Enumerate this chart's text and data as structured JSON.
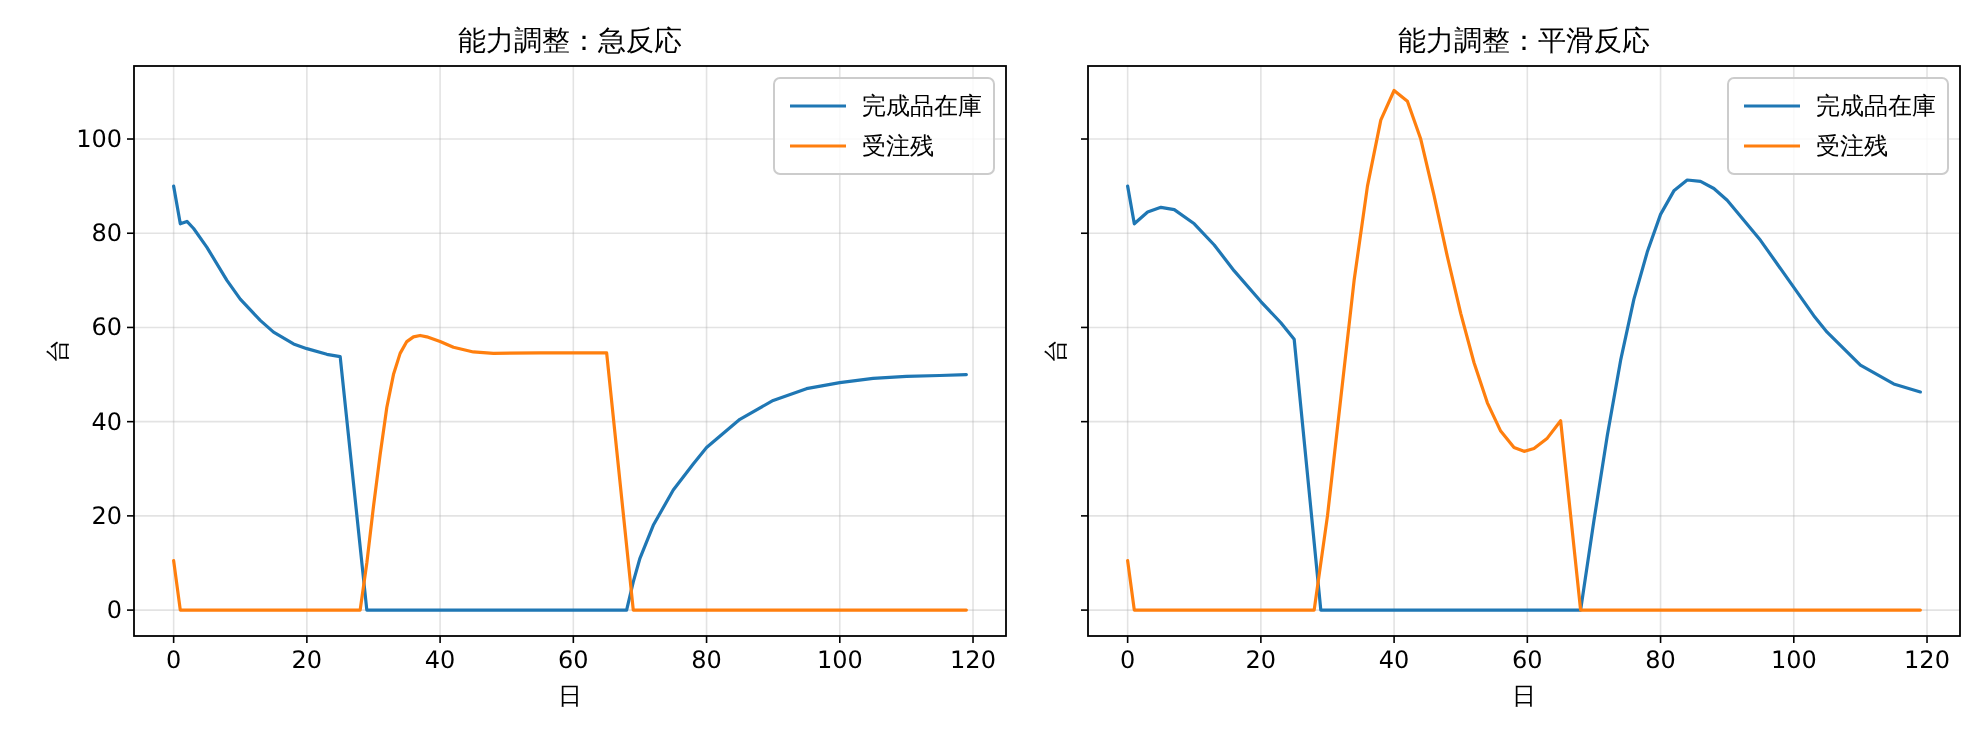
{
  "chart_data": [
    {
      "type": "line",
      "title": "能力調整：急反応",
      "xlabel": "日",
      "ylabel": "台",
      "xlim": [
        -5.95,
        124.95
      ],
      "ylim": [
        -5.5,
        115.5
      ],
      "xticks": [
        0,
        20,
        40,
        60,
        80,
        100,
        120
      ],
      "yticks": [
        0,
        20,
        40,
        60,
        80,
        100
      ],
      "grid": true,
      "legend": "top right",
      "series": [
        {
          "name": "完成品在庫",
          "color": "#1f77b4",
          "x": [
            0,
            1,
            2,
            3,
            5,
            8,
            10,
            13,
            15,
            18,
            20,
            23,
            25,
            29,
            68,
            69,
            70,
            72,
            75,
            78,
            80,
            85,
            90,
            95,
            100,
            105,
            110,
            115,
            119
          ],
          "values": [
            90,
            82,
            82.5,
            81,
            77,
            70,
            66,
            61.5,
            59,
            56.5,
            55.5,
            54.3,
            53.8,
            0,
            0,
            6,
            11,
            18,
            25.5,
            31,
            34.5,
            40.5,
            44.5,
            47,
            48.3,
            49.2,
            49.6,
            49.8,
            50
          ]
        },
        {
          "name": "受注残",
          "color": "#ff7f0e",
          "x": [
            0,
            1,
            28,
            29,
            30,
            31,
            32,
            33,
            34,
            35,
            36,
            37,
            38,
            40,
            42,
            45,
            48,
            55,
            65,
            69,
            119
          ],
          "values": [
            10.5,
            0,
            0,
            10,
            22,
            33,
            43,
            50,
            54.5,
            57,
            58,
            58.3,
            58,
            57,
            55.8,
            54.8,
            54.5,
            54.6,
            54.6,
            0,
            0
          ]
        }
      ]
    },
    {
      "type": "line",
      "title": "能力調整：平滑反応",
      "xlabel": "日",
      "ylabel": "台",
      "xlim": [
        -5.95,
        124.95
      ],
      "ylim": [
        -5.5,
        115.5
      ],
      "xticks": [
        0,
        20,
        40,
        60,
        80,
        100,
        120
      ],
      "yticks": [
        0,
        20,
        40,
        60,
        80,
        100
      ],
      "grid": true,
      "legend": "top right",
      "tick_labels": "x",
      "series": [
        {
          "name": "完成品在庫",
          "color": "#1f77b4",
          "x": [
            0,
            1,
            3,
            5,
            7,
            10,
            13,
            16,
            20,
            23,
            25,
            29,
            68,
            70,
            72,
            74,
            76,
            78,
            80,
            82,
            84,
            86,
            88,
            90,
            95,
            100,
            103,
            105,
            110,
            115,
            119
          ],
          "values": [
            90,
            82,
            84.5,
            85.5,
            85,
            82,
            77.5,
            72,
            65.5,
            61,
            57.5,
            0,
            0,
            19,
            37,
            53,
            66,
            76,
            84,
            89,
            91.3,
            91,
            89.5,
            87,
            78.5,
            68.5,
            62.5,
            59,
            52,
            48,
            46.3
          ]
        },
        {
          "name": "受注残",
          "color": "#ff7f0e",
          "x": [
            0,
            1,
            28,
            30,
            32,
            34,
            36,
            38,
            40,
            42,
            44,
            46,
            48,
            50,
            52,
            54,
            56,
            58,
            59.5,
            61,
            63,
            65,
            68,
            119
          ],
          "values": [
            10.5,
            0,
            0,
            20,
            45,
            70,
            90,
            104,
            110.3,
            108,
            100,
            88,
            75,
            63,
            52.5,
            44,
            38,
            34.5,
            33.7,
            34.3,
            36.5,
            40.2,
            0,
            0
          ]
        }
      ]
    }
  ]
}
